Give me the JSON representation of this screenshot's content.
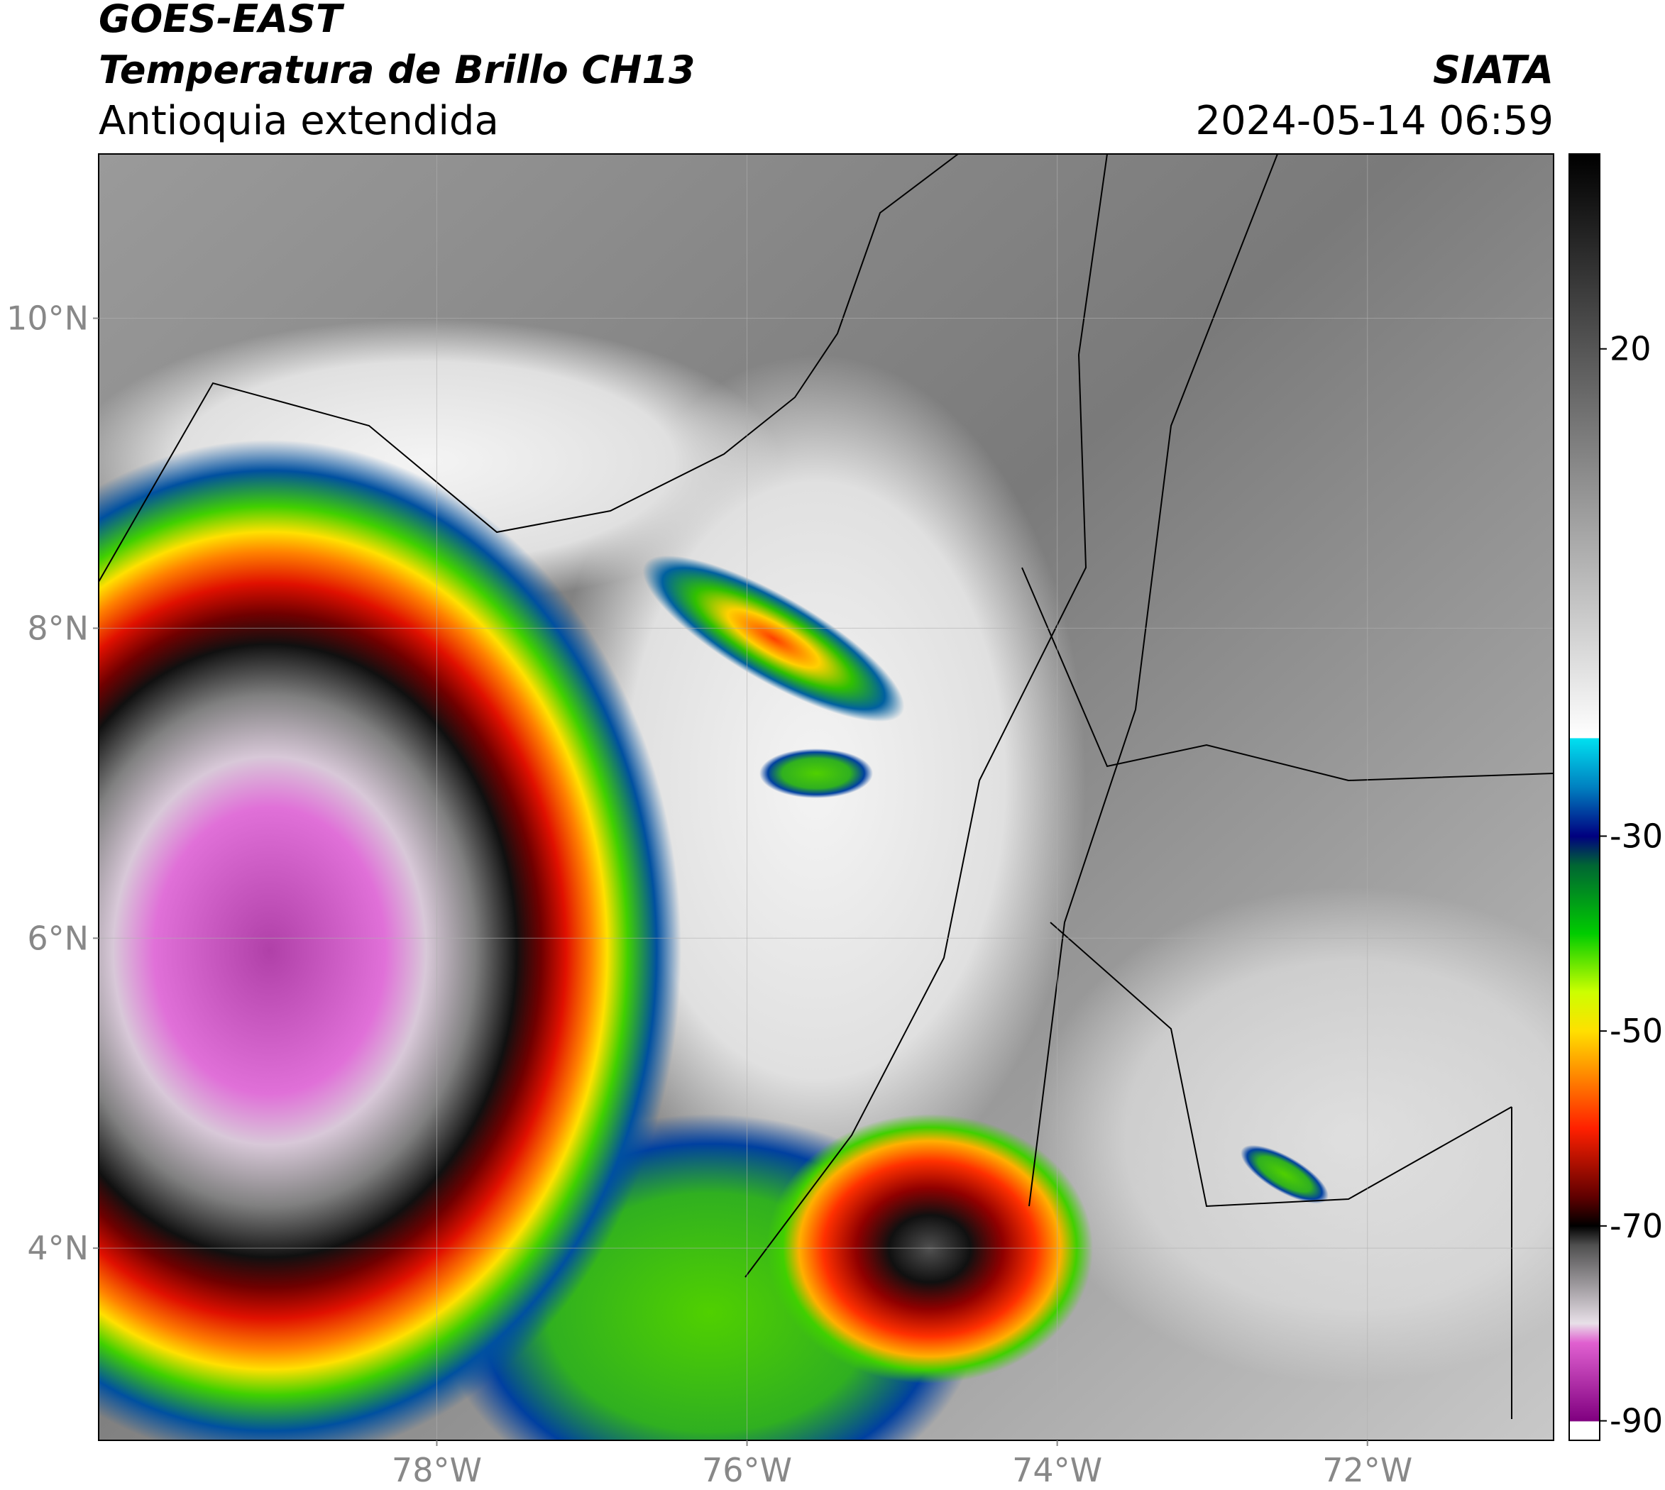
{
  "header": {
    "satellite": "GOES-EAST",
    "product": "Temperatura de Brillo CH13",
    "region": "Antioquia extendida",
    "agency": "SIATA",
    "datetime": "2024-05-14 06:59"
  },
  "map": {
    "xlim": [
      -80.18,
      -70.8
    ],
    "ylim": [
      2.76,
      11.06
    ],
    "xticks": [
      {
        "value": -78,
        "label": "78°W"
      },
      {
        "value": -76,
        "label": "76°W"
      },
      {
        "value": -74,
        "label": "74°W"
      },
      {
        "value": -72,
        "label": "72°W"
      }
    ],
    "yticks": [
      {
        "value": 10,
        "label": "10°N"
      },
      {
        "value": 8,
        "label": "8°N"
      },
      {
        "value": 6,
        "label": "6°N"
      },
      {
        "value": 4,
        "label": "4°N"
      }
    ],
    "grid": true
  },
  "colorbar": {
    "lim": [
      -92,
      40
    ],
    "ticks": [
      20,
      -30,
      -50,
      -70,
      -90
    ],
    "colormap": [
      {
        "value": 40,
        "color": "#000000"
      },
      {
        "value": -19.9,
        "color": "#ffffff"
      },
      {
        "value": -20,
        "color": "#00e0f0"
      },
      {
        "value": -25,
        "color": "#0080c0"
      },
      {
        "value": -30,
        "color": "#000080"
      },
      {
        "value": -33,
        "color": "#006633"
      },
      {
        "value": -40,
        "color": "#00cc00"
      },
      {
        "value": -46,
        "color": "#ccff00"
      },
      {
        "value": -50,
        "color": "#ffe000"
      },
      {
        "value": -55,
        "color": "#ff8000"
      },
      {
        "value": -60,
        "color": "#ff2000"
      },
      {
        "value": -67,
        "color": "#600000"
      },
      {
        "value": -70,
        "color": "#000000"
      },
      {
        "value": -72,
        "color": "#505050"
      },
      {
        "value": -80,
        "color": "#e8e0e8"
      },
      {
        "value": -82,
        "color": "#e060d0"
      },
      {
        "value": -90,
        "color": "#800080"
      },
      {
        "value": -90.1,
        "color": "#ffffff"
      },
      {
        "value": -92,
        "color": "#ffffff"
      }
    ]
  }
}
